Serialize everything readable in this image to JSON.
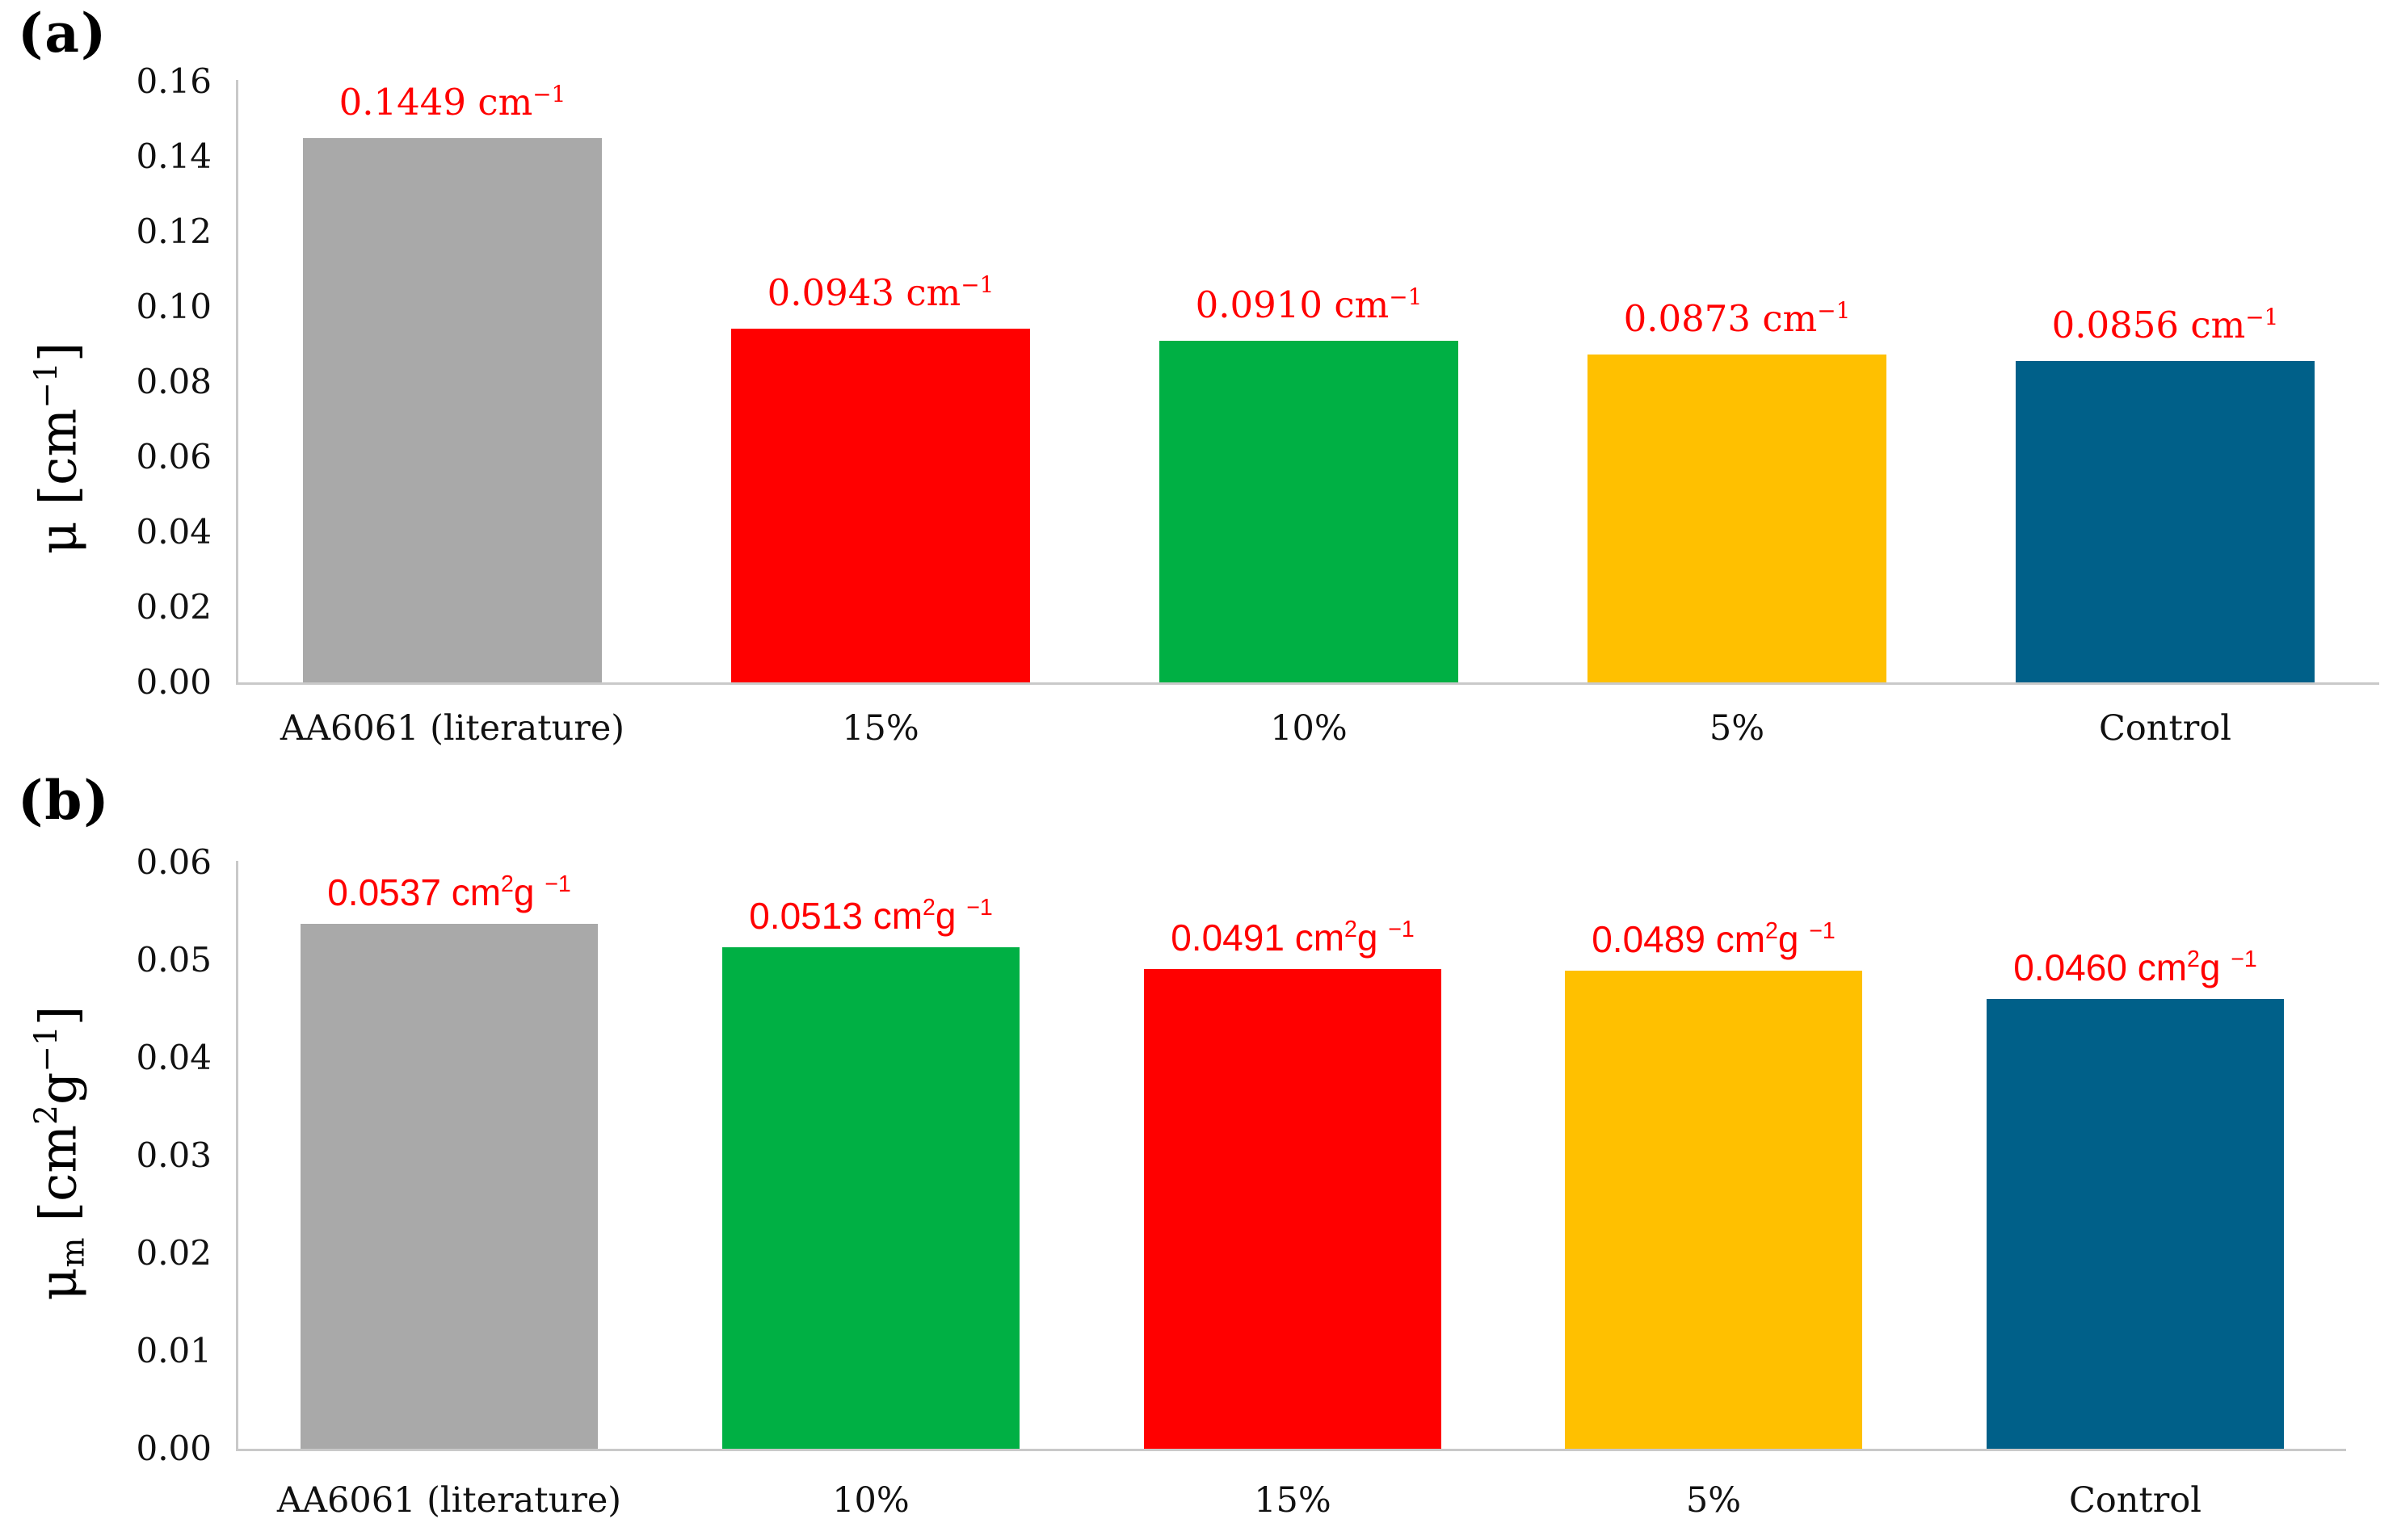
{
  "chart_data": [
    {
      "type": "bar",
      "panel_label": "(a)",
      "title": "",
      "xlabel": "",
      "ylabel_text": "μ [cm−1]",
      "ylabel_tokens": [
        {
          "t": "μ"
        },
        {
          "t": " [cm"
        },
        {
          "t": "−1",
          "sup": true
        },
        {
          "t": "]"
        }
      ],
      "ylim": [
        0,
        0.16
      ],
      "ytick_labels": [
        "0.16",
        "0.14",
        "0.12",
        "0.10",
        "0.08",
        "0.06",
        "0.04",
        "0.02",
        "0.00"
      ],
      "categories": [
        "AA6061 (literature)",
        "15%",
        "10%",
        "5%",
        "Control"
      ],
      "values": [
        0.1449,
        0.0943,
        0.091,
        0.0873,
        0.0856
      ],
      "value_labels": [
        "0.1449",
        "0.0943",
        "0.0910",
        "0.0873",
        "0.0856"
      ],
      "unit_text": "cm−1",
      "unit_tokens": [
        {
          "t": " cm"
        },
        {
          "t": "−1",
          "sup": true
        }
      ],
      "bar_colors": [
        "#A9A9A9",
        "#FF0000",
        "#00B044",
        "#FFC000",
        "#006089"
      ],
      "data_label_color": "#FF0000",
      "axis_color": "#C9C9C9",
      "text_color": "#111111",
      "grid": false,
      "legend": null
    },
    {
      "type": "bar",
      "panel_label": "(b)",
      "title": "",
      "xlabel": "",
      "ylabel_text": "μm [cm2g−1]",
      "ylabel_tokens": [
        {
          "t": "μ"
        },
        {
          "t": "m",
          "sub": true
        },
        {
          "t": " [cm"
        },
        {
          "t": "2",
          "sup": true
        },
        {
          "t": "g"
        },
        {
          "t": "−1",
          "sup": true
        },
        {
          "t": "]"
        }
      ],
      "ylim": [
        0,
        0.06
      ],
      "ytick_labels": [
        "0.06",
        "0.05",
        "0.04",
        "0.03",
        "0.02",
        "0.01",
        "0.00"
      ],
      "categories": [
        "AA6061 (literature)",
        "10%",
        "15%",
        "5%",
        "Control"
      ],
      "values": [
        0.0537,
        0.0513,
        0.0491,
        0.0489,
        0.046
      ],
      "value_labels": [
        "0.0537",
        "0.0513",
        "0.0491",
        "0.0489",
        "0.0460"
      ],
      "unit_text": "cm2g −1",
      "unit_tokens": [
        {
          "t": " cm"
        },
        {
          "t": "2",
          "sup": true
        },
        {
          "t": "g "
        },
        {
          "t": "−1",
          "sup": true
        }
      ],
      "bar_colors": [
        "#A9A9A9",
        "#00B044",
        "#FF0000",
        "#FFC000",
        "#006089"
      ],
      "data_label_color": "#FF0000",
      "axis_color": "#C9C9C9",
      "text_color": "#111111",
      "grid": false,
      "legend": null
    }
  ]
}
